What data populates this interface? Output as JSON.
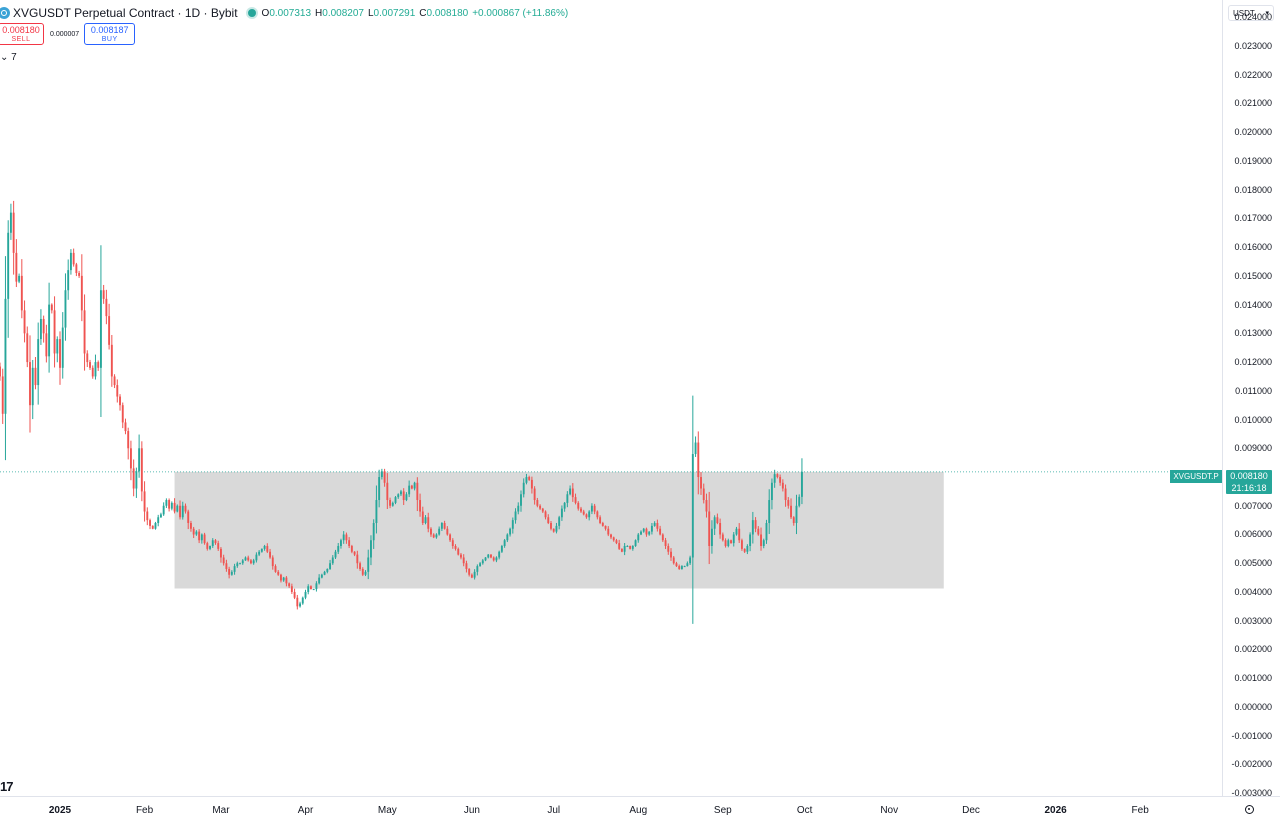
{
  "header": {
    "title": "XVGUSDT Perpetual Contract · 1D · Bybit",
    "ohlc": {
      "open_label": "O",
      "open": "0.007313",
      "high_label": "H",
      "high": "0.008207",
      "low_label": "L",
      "low": "0.007291",
      "close_label": "C",
      "close": "0.008180",
      "change": "+0.000867 (+11.86%)"
    }
  },
  "trade": {
    "sell_price": "0.008180",
    "sell_label": "SELL",
    "spread": "0.000007",
    "buy_price": "0.008187",
    "buy_label": "BUY"
  },
  "indicators_toggle": "⌄ 7",
  "currency": "USDT",
  "last_price": {
    "symbol": "XVGUSDT.P",
    "price": "0.008180",
    "countdown": "21:16:18",
    "color": "#26a69a"
  },
  "logo_text": "17",
  "colors": {
    "up": "#26a69a",
    "down": "#ef5350",
    "zone": "#d9d9d9"
  },
  "chart_data": {
    "type": "candlestick",
    "title": "XVGUSDT Perpetual Contract · 1D · Bybit",
    "xlabel": "",
    "ylabel": "",
    "x_range": [
      "2024-12-10",
      "2026-03-03"
    ],
    "ylim": [
      -0.0031,
      0.0246
    ],
    "y_ticks": [
      "0.024000",
      "0.023000",
      "0.022000",
      "0.021000",
      "0.020000",
      "0.019000",
      "0.018000",
      "0.017000",
      "0.016000",
      "0.015000",
      "0.014000",
      "0.013000",
      "0.012000",
      "0.011000",
      "0.010000",
      "0.009000",
      "0.007000",
      "0.006000",
      "0.005000",
      "0.004000",
      "0.003000",
      "0.002000",
      "0.001000",
      "0.000000",
      "-0.001000",
      "-0.002000",
      "-0.003000"
    ],
    "y_tick_values": [
      0.024,
      0.023,
      0.022,
      0.021,
      0.02,
      0.019,
      0.018,
      0.017,
      0.016,
      0.015,
      0.014,
      0.013,
      0.012,
      0.011,
      0.01,
      0.009,
      0.007,
      0.006,
      0.005,
      0.004,
      0.003,
      0.002,
      0.001,
      0.0,
      -0.001,
      -0.002,
      -0.003
    ],
    "x_ticks": [
      {
        "label": "2025",
        "date": "2025-01-01",
        "bold": true
      },
      {
        "label": "Feb",
        "date": "2025-02-01"
      },
      {
        "label": "Mar",
        "date": "2025-03-01"
      },
      {
        "label": "Apr",
        "date": "2025-04-01"
      },
      {
        "label": "May",
        "date": "2025-05-01"
      },
      {
        "label": "Jun",
        "date": "2025-06-01"
      },
      {
        "label": "Jul",
        "date": "2025-07-01"
      },
      {
        "label": "Aug",
        "date": "2025-08-01"
      },
      {
        "label": "Sep",
        "date": "2025-09-01"
      },
      {
        "label": "Oct",
        "date": "2025-10-01"
      },
      {
        "label": "Nov",
        "date": "2025-11-01"
      },
      {
        "label": "Dec",
        "date": "2025-12-01"
      },
      {
        "label": "2026",
        "date": "2026-01-01",
        "bold": true
      },
      {
        "label": "Feb",
        "date": "2026-02-01"
      }
    ],
    "range_box": {
      "from": "2025-02-12",
      "to": "2025-11-21",
      "low": 0.00412,
      "high": 0.00818
    },
    "last_price_line": 0.00818,
    "grid": false,
    "series": [
      {
        "first_date": "2024-12-10",
        "interval_days": 1,
        "close": [
          0.0115,
          0.0102,
          0.0142,
          0.0165,
          0.0172,
          0.0158,
          0.0148,
          0.015,
          0.0138,
          0.013,
          0.012,
          0.0105,
          0.0118,
          0.0112,
          0.0128,
          0.0135,
          0.013,
          0.0122,
          0.014,
          0.0138,
          0.0123,
          0.0128,
          0.0118,
          0.0132,
          0.0145,
          0.0152,
          0.0158,
          0.0154,
          0.0151,
          0.015,
          0.0138,
          0.0123,
          0.012,
          0.0118,
          0.0115,
          0.012,
          0.0118,
          0.0145,
          0.0142,
          0.0136,
          0.0126,
          0.0115,
          0.0112,
          0.0108,
          0.0105,
          0.0099,
          0.0096,
          0.009,
          0.0083,
          0.0076,
          0.0082,
          0.009,
          0.0075,
          0.0068,
          0.0065,
          0.0063,
          0.0062,
          0.0064,
          0.0066,
          0.0067,
          0.007,
          0.0072,
          0.0069,
          0.0071,
          0.0068,
          0.007,
          0.0066,
          0.007,
          0.0068,
          0.0064,
          0.0062,
          0.006,
          0.0061,
          0.0058,
          0.006,
          0.0057,
          0.0055,
          0.0056,
          0.0058,
          0.0057,
          0.0055,
          0.0052,
          0.005,
          0.0048,
          0.0046,
          0.0047,
          0.0049,
          0.005,
          0.005,
          0.0051,
          0.0052,
          0.0051,
          0.005,
          0.0051,
          0.0053,
          0.0054,
          0.0055,
          0.0056,
          0.0054,
          0.0052,
          0.0049,
          0.0047,
          0.0046,
          0.0044,
          0.0045,
          0.0043,
          0.0042,
          0.004,
          0.0038,
          0.0035,
          0.0036,
          0.0038,
          0.004,
          0.0042,
          0.0041,
          0.0041,
          0.0043,
          0.0045,
          0.0046,
          0.0047,
          0.0048,
          0.005,
          0.0052,
          0.0054,
          0.0056,
          0.0058,
          0.006,
          0.0058,
          0.0056,
          0.0054,
          0.0053,
          0.005,
          0.0048,
          0.0046,
          0.0047,
          0.0052,
          0.0058,
          0.0064,
          0.0072,
          0.008,
          0.0082,
          0.0078,
          0.0072,
          0.007,
          0.0071,
          0.0073,
          0.0074,
          0.0075,
          0.0072,
          0.0074,
          0.0077,
          0.0076,
          0.0078,
          0.0072,
          0.0068,
          0.0064,
          0.0066,
          0.0062,
          0.006,
          0.0059,
          0.006,
          0.0062,
          0.0064,
          0.0062,
          0.006,
          0.0058,
          0.0056,
          0.0055,
          0.0053,
          0.0052,
          0.005,
          0.0048,
          0.0046,
          0.0045,
          0.0047,
          0.0049,
          0.005,
          0.0051,
          0.0052,
          0.0053,
          0.0052,
          0.0051,
          0.0052,
          0.0054,
          0.0056,
          0.0058,
          0.006,
          0.0062,
          0.0065,
          0.0068,
          0.007,
          0.0074,
          0.0078,
          0.008,
          0.0079,
          0.0076,
          0.0072,
          0.007,
          0.0069,
          0.0068,
          0.0066,
          0.0064,
          0.0062,
          0.0061,
          0.0063,
          0.0066,
          0.0069,
          0.0071,
          0.0074,
          0.0076,
          0.0073,
          0.0071,
          0.0069,
          0.0068,
          0.0067,
          0.0066,
          0.0068,
          0.007,
          0.0068,
          0.0066,
          0.0064,
          0.0063,
          0.0062,
          0.006,
          0.0059,
          0.0058,
          0.0057,
          0.0055,
          0.0054,
          0.0056,
          0.0056,
          0.0055,
          0.0056,
          0.0058,
          0.006,
          0.0061,
          0.0062,
          0.006,
          0.0061,
          0.0063,
          0.0064,
          0.0062,
          0.006,
          0.0058,
          0.0056,
          0.0054,
          0.0052,
          0.005,
          0.0049,
          0.0048,
          0.0049,
          0.0049,
          0.005,
          0.0052,
          0.0088,
          0.0092,
          0.008,
          0.0076,
          0.0072,
          0.0068,
          0.0056,
          0.0062,
          0.0066,
          0.0064,
          0.006,
          0.0058,
          0.0056,
          0.0058,
          0.0057,
          0.006,
          0.0062,
          0.0058,
          0.0055,
          0.0054,
          0.0056,
          0.006,
          0.0065,
          0.0062,
          0.006,
          0.0056,
          0.0058,
          0.0064,
          0.0072,
          0.0078,
          0.0081,
          0.008,
          0.0078,
          0.0076,
          0.0072,
          0.007,
          0.0066,
          0.0064,
          0.007,
          0.00731,
          0.00818
        ]
      }
    ]
  }
}
